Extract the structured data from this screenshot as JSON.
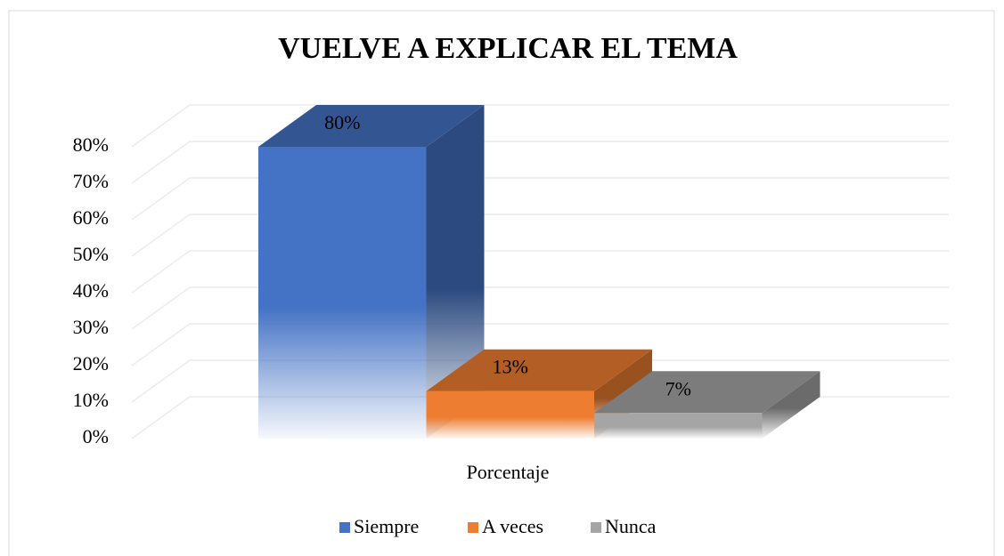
{
  "chart_data": {
    "type": "bar3d",
    "title": "VUELVE A EXPLICAR EL TEMA",
    "categories": [
      "Porcentaje"
    ],
    "series": [
      {
        "name": "Siempre",
        "color": "#4472c4",
        "values": [
          80
        ],
        "value_labels": [
          "80%"
        ]
      },
      {
        "name": "A veces",
        "color": "#ed7d31",
        "values": [
          13
        ],
        "value_labels": [
          "13%"
        ]
      },
      {
        "name": "Nunca",
        "color": "#a5a5a5",
        "values": [
          7
        ],
        "value_labels": [
          "7%"
        ]
      }
    ],
    "ylim": [
      0,
      80
    ],
    "yticks": [
      {
        "value": 0,
        "label": "0%"
      },
      {
        "value": 10,
        "label": "10%"
      },
      {
        "value": 20,
        "label": "20%"
      },
      {
        "value": 30,
        "label": "30%"
      },
      {
        "value": 40,
        "label": "40%"
      },
      {
        "value": 50,
        "label": "50%"
      },
      {
        "value": 60,
        "label": "60%"
      },
      {
        "value": 70,
        "label": "70%"
      },
      {
        "value": 80,
        "label": "80%"
      }
    ],
    "grid": true,
    "legend": "bottom"
  }
}
